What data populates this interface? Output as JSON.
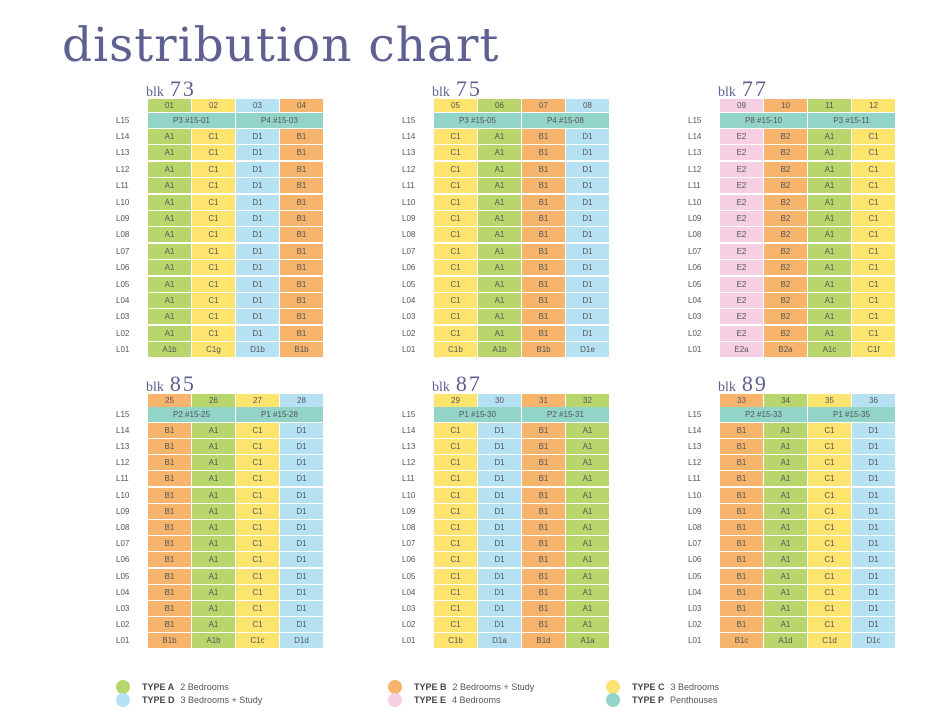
{
  "title": "distribution chart",
  "blk_word": "blk",
  "colors": {
    "A": "#b9d66c",
    "B": "#f6b46c",
    "C": "#fce46e",
    "D": "#b6e1f3",
    "E": "#f6cfe3",
    "P": "#93d4c8"
  },
  "levels": [
    "L15",
    "L14",
    "L13",
    "L12",
    "L11",
    "L10",
    "L09",
    "L08",
    "L07",
    "L06",
    "L05",
    "L04",
    "L03",
    "L02",
    "L01"
  ],
  "blocks": [
    {
      "name": "73",
      "units": [
        "01",
        "02",
        "03",
        "04"
      ],
      "penthouses": [
        "P3 #15-01",
        "P4 #15-03"
      ],
      "typical": [
        "A1",
        "C1",
        "D1",
        "B1"
      ],
      "l01": [
        "A1b",
        "C1g",
        "D1b",
        "B1b"
      ]
    },
    {
      "name": "75",
      "units": [
        "05",
        "06",
        "07",
        "08"
      ],
      "penthouses": [
        "P3 #15-05",
        "P4 #15-08"
      ],
      "typical": [
        "C1",
        "A1",
        "B1",
        "D1"
      ],
      "l01": [
        "C1b",
        "A1b",
        "B1b",
        "D1e"
      ]
    },
    {
      "name": "77",
      "units": [
        "09",
        "10",
        "11",
        "12"
      ],
      "penthouses": [
        "P8 #15-10",
        "P3 #15-11"
      ],
      "typical": [
        "E2",
        "B2",
        "A1",
        "C1"
      ],
      "l01": [
        "E2a",
        "B2a",
        "A1c",
        "C1f"
      ]
    },
    {
      "name": "85",
      "units": [
        "25",
        "26",
        "27",
        "28"
      ],
      "penthouses": [
        "P2 #15-25",
        "P1 #15-28"
      ],
      "typical": [
        "B1",
        "A1",
        "C1",
        "D1"
      ],
      "l01": [
        "B1b",
        "A1b",
        "C1c",
        "D1d"
      ]
    },
    {
      "name": "87",
      "units": [
        "29",
        "30",
        "31",
        "32"
      ],
      "penthouses": [
        "P1 #15-30",
        "P2 #15-31"
      ],
      "typical": [
        "C1",
        "D1",
        "B1",
        "A1"
      ],
      "l01": [
        "C1b",
        "D1a",
        "B1d",
        "A1a"
      ]
    },
    {
      "name": "89",
      "units": [
        "33",
        "34",
        "35",
        "36"
      ],
      "penthouses": [
        "P2 #15-33",
        "P1 #15-35"
      ],
      "typical": [
        "B1",
        "A1",
        "C1",
        "D1"
      ],
      "l01": [
        "B1c",
        "A1d",
        "C1d",
        "D1c"
      ]
    }
  ],
  "legend": [
    {
      "key": "A",
      "type": "TYPE A",
      "desc": "2 Bedrooms"
    },
    {
      "key": "B",
      "type": "TYPE B",
      "desc": "2 Bedrooms + Study"
    },
    {
      "key": "C",
      "type": "TYPE C",
      "desc": "3 Bedrooms"
    },
    {
      "key": "D",
      "type": "TYPE D",
      "desc": "3 Bedrooms + Study"
    },
    {
      "key": "E",
      "type": "TYPE E",
      "desc": "4 Bedrooms"
    },
    {
      "key": "P",
      "type": "TYPE P",
      "desc": "Penthouses"
    }
  ]
}
